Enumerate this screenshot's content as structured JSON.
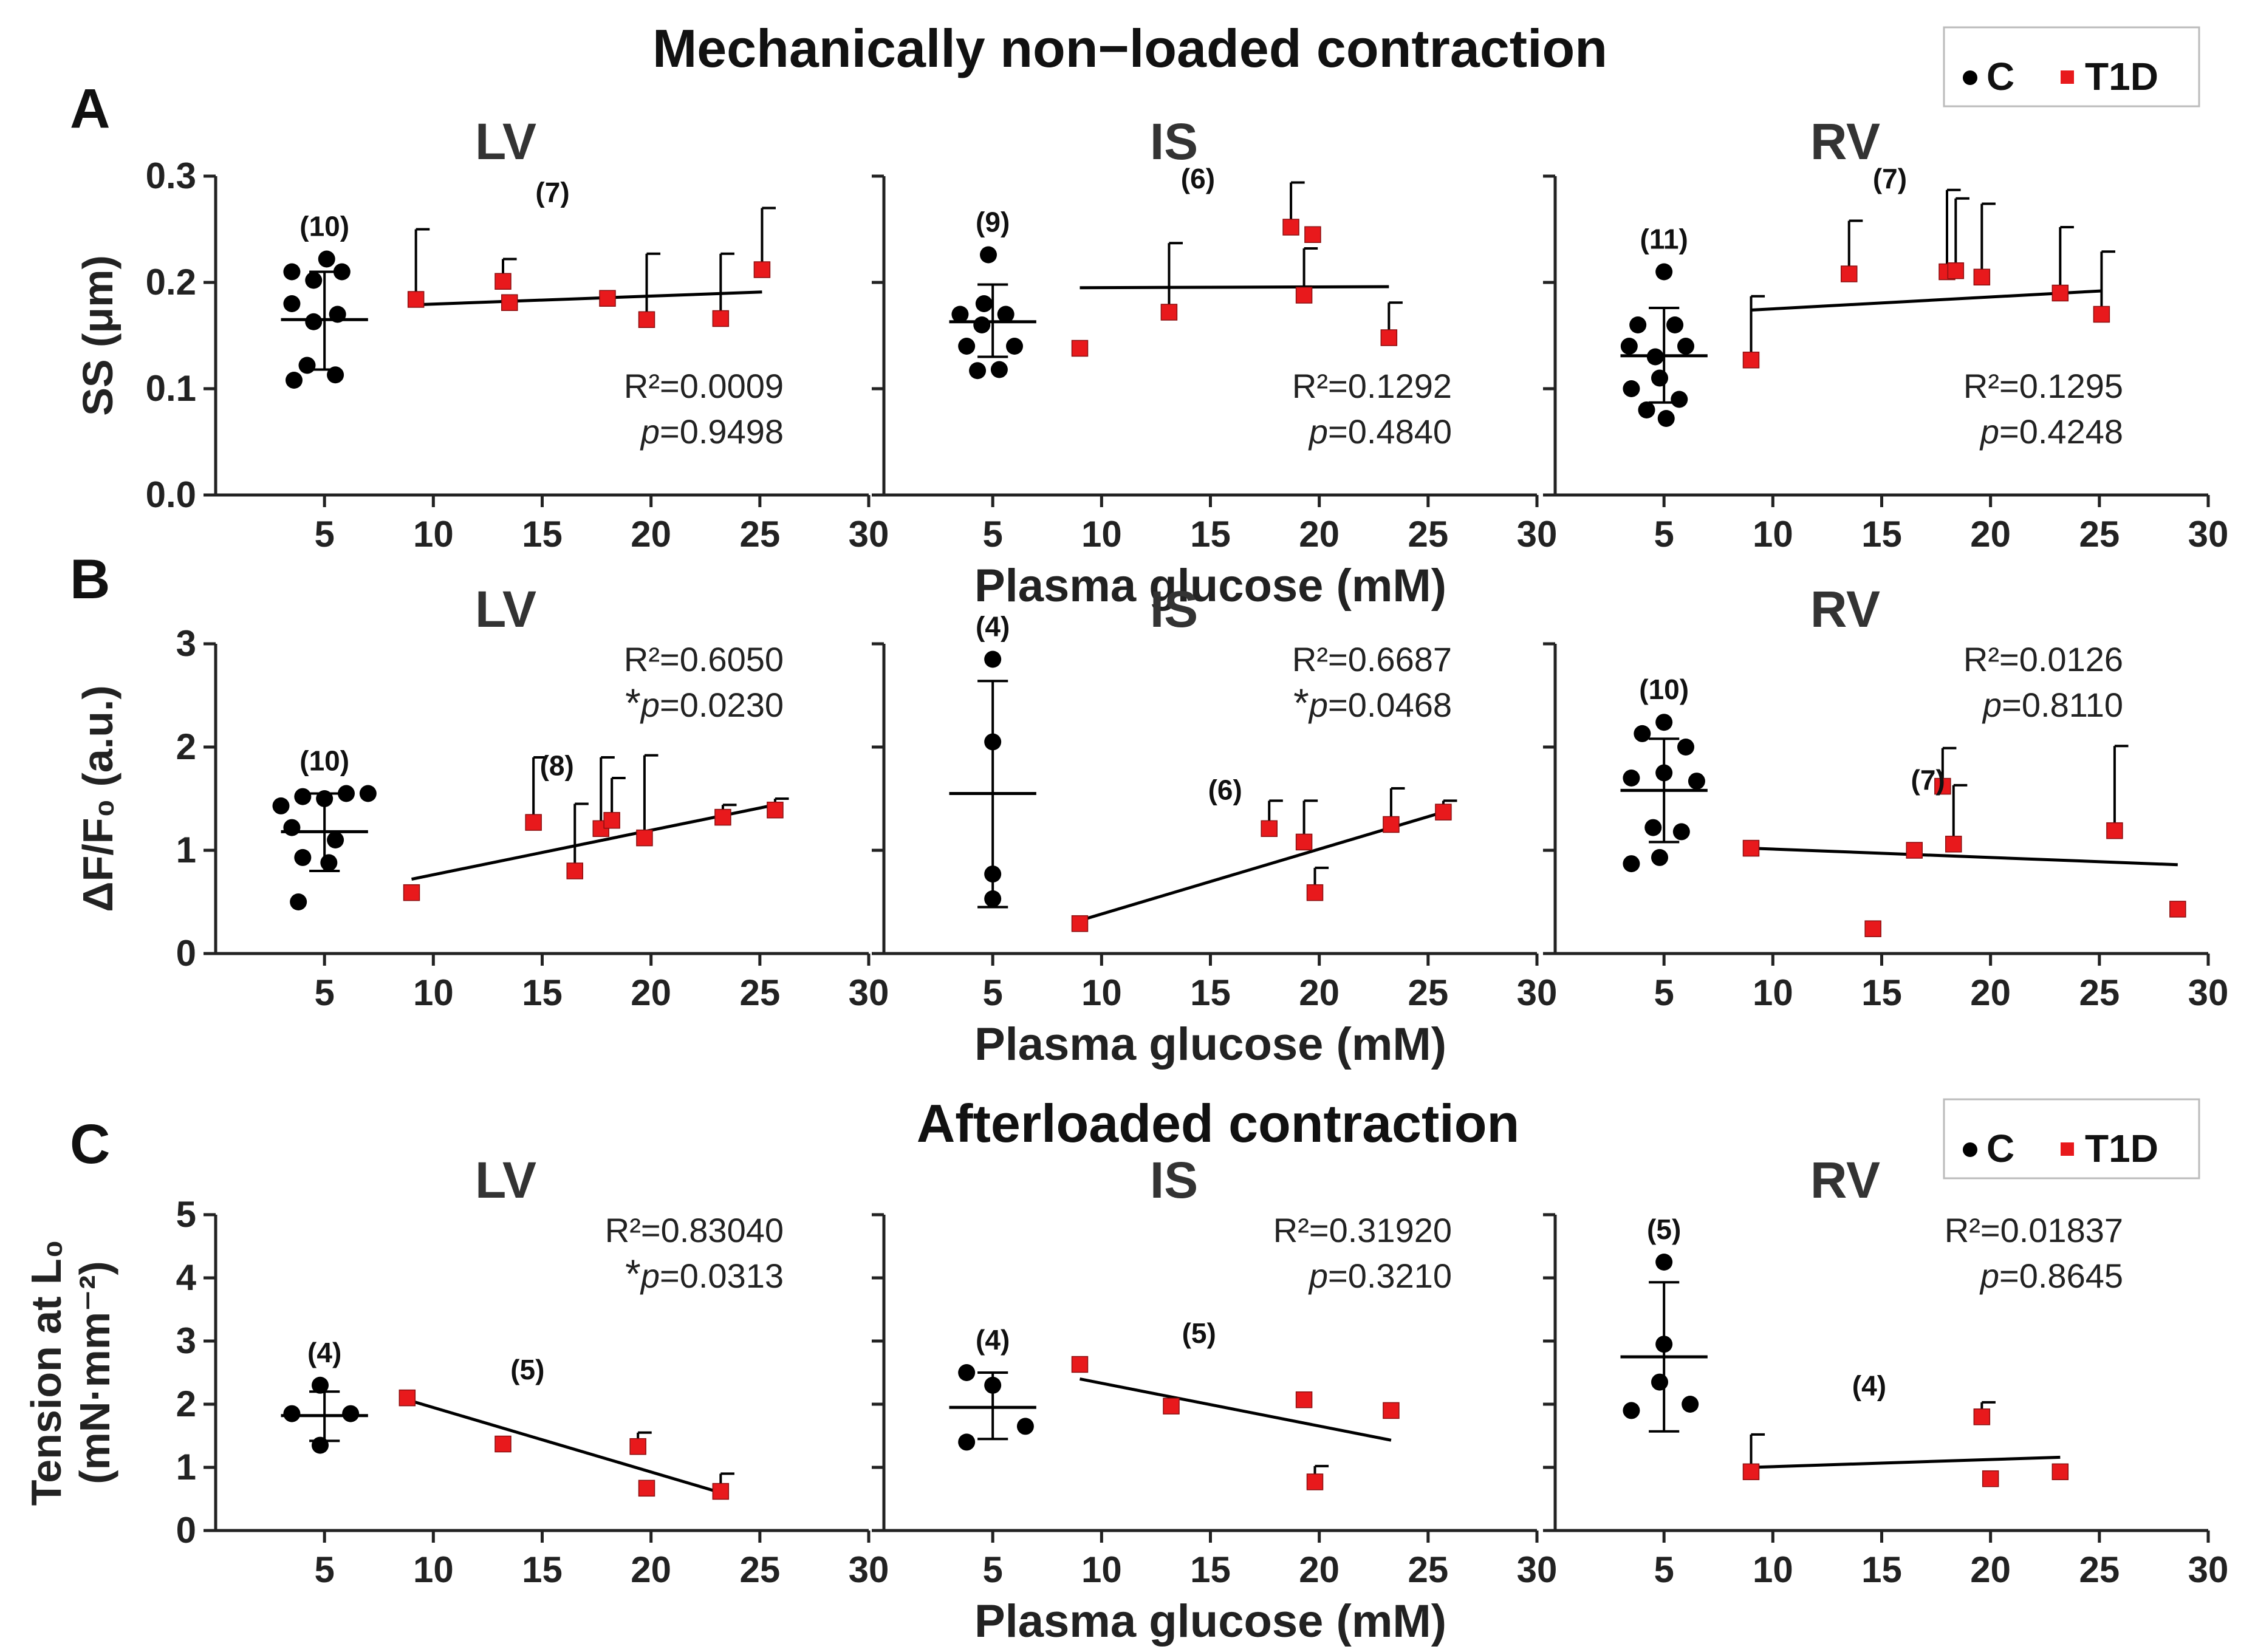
{
  "section_titles": {
    "non_loaded": "Mechanically non−loaded contraction",
    "afterloaded": "Afterloaded contraction"
  },
  "legend": {
    "c_label": "C",
    "t1d_label": "T1D"
  },
  "colors": {
    "control": "#000000",
    "t1d": "#e8191c",
    "axis": "#222222",
    "line": "#000000"
  },
  "icons": {
    "control_marker": "filled-circle",
    "t1d_marker": "filled-square",
    "significance": "asterisk"
  },
  "chart_data": [
    {
      "type": "scatter",
      "row": "A",
      "title": "LV",
      "ylabel": "SS (μm)",
      "xlabel": "",
      "xlim": [
        0,
        30
      ],
      "xticks": [
        5,
        10,
        15,
        20,
        25,
        30
      ],
      "xtick_labels": [
        "5",
        "10",
        "15",
        "20",
        "25",
        "30"
      ],
      "ylim": [
        0,
        0.3
      ],
      "yticks": [
        0,
        0.1,
        0.2,
        0.3
      ],
      "ytick_labels": [
        "0.0",
        "0.1",
        "0.2",
        "0.3"
      ],
      "control": {
        "x": [
          3.5,
          4.5,
          5.8,
          3.5,
          4.5,
          5.6,
          4.2,
          5.5,
          3.6,
          5.1
        ],
        "y": [
          0.21,
          0.202,
          0.21,
          0.18,
          0.163,
          0.17,
          0.122,
          0.113,
          0.108,
          0.222
        ],
        "mean": 0.165,
        "sd_low": 0.118,
        "sd_high": 0.21,
        "n_label": "(10)"
      },
      "t1d": {
        "x": [
          9.2,
          13.2,
          13.5,
          18.0,
          19.8,
          23.2,
          25.1
        ],
        "y": [
          0.184,
          0.201,
          0.181,
          0.185,
          0.165,
          0.166,
          0.212
        ],
        "err_high": [
          0.25,
          0.222,
          null,
          null,
          0.227,
          0.227,
          0.27
        ],
        "n_label": "(7)"
      },
      "fit": {
        "x": [
          9.2,
          25.1
        ],
        "y": [
          0.179,
          0.191
        ]
      },
      "stats": {
        "sig": "",
        "r2": "R²=0.0009",
        "p_prefix": "p",
        "p_value": "=0.9498"
      }
    },
    {
      "type": "scatter",
      "row": "A",
      "title": "IS",
      "ylabel": "",
      "xlabel": "Plasma glucose (mM)",
      "xlim": [
        0,
        30
      ],
      "xticks": [
        5,
        10,
        15,
        20,
        25,
        30
      ],
      "xtick_labels": [
        "5",
        "10",
        "15",
        "20",
        "25",
        "30"
      ],
      "ylim": [
        0,
        0.3
      ],
      "yticks": [
        0,
        0.1,
        0.2,
        0.3
      ],
      "ytick_labels": [
        "",
        "",
        "",
        ""
      ],
      "control": {
        "x": [
          4.8,
          3.5,
          4.5,
          5.6,
          3.8,
          6.0,
          4.3,
          5.3,
          4.6
        ],
        "y": [
          0.226,
          0.17,
          0.16,
          0.17,
          0.14,
          0.14,
          0.117,
          0.118,
          0.18
        ],
        "mean": 0.163,
        "sd_low": 0.13,
        "sd_high": 0.198,
        "n_label": "(9)"
      },
      "t1d": {
        "x": [
          9.0,
          13.1,
          18.7,
          19.3,
          19.7,
          23.2
        ],
        "y": [
          0.138,
          0.172,
          0.252,
          0.188,
          0.245,
          0.148
        ],
        "err_high": [
          null,
          0.237,
          0.294,
          0.232,
          null,
          0.181
        ],
        "n_label": "(6)"
      },
      "fit": {
        "x": [
          9.0,
          23.2
        ],
        "y": [
          0.195,
          0.196
        ]
      },
      "stats": {
        "sig": "",
        "r2": "R²=0.1292",
        "p_prefix": "p",
        "p_value": "=0.4840"
      }
    },
    {
      "type": "scatter",
      "row": "A",
      "title": "RV",
      "ylabel": "",
      "xlabel": "",
      "xlim": [
        0,
        30
      ],
      "xticks": [
        5,
        10,
        15,
        20,
        25,
        30
      ],
      "xtick_labels": [
        "5",
        "10",
        "15",
        "20",
        "25",
        "30"
      ],
      "ylim": [
        0,
        0.3
      ],
      "yticks": [
        0,
        0.1,
        0.2,
        0.3
      ],
      "ytick_labels": [
        "",
        "",
        "",
        ""
      ],
      "control": {
        "x": [
          5.0,
          3.8,
          5.5,
          3.4,
          4.6,
          6.0,
          3.5,
          4.8,
          5.7,
          4.2,
          5.1
        ],
        "y": [
          0.21,
          0.16,
          0.16,
          0.14,
          0.13,
          0.14,
          0.1,
          0.11,
          0.09,
          0.08,
          0.072
        ],
        "mean": 0.131,
        "sd_low": 0.087,
        "sd_high": 0.176,
        "n_label": "(11)"
      },
      "t1d": {
        "x": [
          9.0,
          13.5,
          18.0,
          18.4,
          19.6,
          23.2,
          25.1
        ],
        "y": [
          0.127,
          0.208,
          0.21,
          0.211,
          0.205,
          0.19,
          0.17
        ],
        "err_high": [
          0.187,
          0.258,
          0.287,
          0.279,
          0.274,
          0.252,
          0.229
        ],
        "n_label": "(7)"
      },
      "fit": {
        "x": [
          9.0,
          25.1
        ],
        "y": [
          0.174,
          0.192
        ]
      },
      "stats": {
        "sig": "",
        "r2": "R²=0.1295",
        "p_prefix": "p",
        "p_value": "=0.4248"
      }
    },
    {
      "type": "scatter",
      "row": "B",
      "title": "LV",
      "ylabel": "ΔF/F₀ (a.u.)",
      "xlabel": "",
      "xlim": [
        0,
        30
      ],
      "xticks": [
        5,
        10,
        15,
        20,
        25,
        30
      ],
      "xtick_labels": [
        "5",
        "10",
        "15",
        "20",
        "25",
        "30"
      ],
      "ylim": [
        0,
        3
      ],
      "yticks": [
        0,
        1,
        2,
        3
      ],
      "ytick_labels": [
        "0",
        "1",
        "2",
        "3"
      ],
      "control": {
        "x": [
          3.0,
          4.0,
          5.0,
          6.0,
          7.0,
          3.5,
          5.5,
          4.0,
          5.2,
          3.8
        ],
        "y": [
          1.43,
          1.52,
          1.5,
          1.55,
          1.55,
          1.22,
          1.1,
          0.93,
          0.88,
          0.5
        ],
        "mean": 1.18,
        "sd_low": 0.8,
        "sd_high": 1.55,
        "n_label": "(10)"
      },
      "t1d": {
        "x": [
          9.0,
          14.6,
          16.5,
          17.7,
          18.2,
          19.7,
          23.3,
          25.7
        ],
        "y": [
          0.59,
          1.27,
          0.8,
          1.21,
          1.29,
          1.12,
          1.32,
          1.39
        ],
        "err_high": [
          null,
          1.9,
          1.45,
          1.9,
          1.7,
          1.92,
          1.44,
          1.5
        ],
        "n_label": "(8)"
      },
      "fit": {
        "x": [
          9.0,
          25.7
        ],
        "y": [
          0.72,
          1.44
        ]
      },
      "stats": {
        "sig": "*",
        "r2": "R²=0.6050",
        "p_prefix": "p",
        "p_value": "=0.0230"
      }
    },
    {
      "type": "scatter",
      "row": "B",
      "title": "IS",
      "ylabel": "",
      "xlabel": "Plasma glucose (mM)",
      "xlim": [
        0,
        30
      ],
      "xticks": [
        5,
        10,
        15,
        20,
        25,
        30
      ],
      "xtick_labels": [
        "5",
        "10",
        "15",
        "20",
        "25",
        "30"
      ],
      "ylim": [
        0,
        3
      ],
      "yticks": [
        0,
        1,
        2,
        3
      ],
      "ytick_labels": [
        "",
        "",
        "",
        ""
      ],
      "control": {
        "x": [
          5.0,
          5.0,
          5.0,
          5.0
        ],
        "y": [
          2.85,
          2.05,
          0.77,
          0.53
        ],
        "mean": 1.55,
        "sd_low": 0.45,
        "sd_high": 2.64,
        "n_label": "(4)"
      },
      "t1d": {
        "x": [
          9.0,
          17.7,
          19.3,
          19.8,
          23.3,
          25.7
        ],
        "y": [
          0.29,
          1.21,
          1.08,
          0.59,
          1.25,
          1.37
        ],
        "err_high": [
          null,
          1.48,
          1.48,
          0.83,
          1.6,
          1.48
        ],
        "n_label": "(6)"
      },
      "fit": {
        "x": [
          9.0,
          25.7
        ],
        "y": [
          0.32,
          1.37
        ]
      },
      "stats": {
        "sig": "*",
        "r2": "R²=0.6687",
        "p_prefix": "p",
        "p_value": "=0.0468"
      }
    },
    {
      "type": "scatter",
      "row": "B",
      "title": "RV",
      "ylabel": "",
      "xlabel": "",
      "xlim": [
        0,
        30
      ],
      "xticks": [
        5,
        10,
        15,
        20,
        25,
        30
      ],
      "xtick_labels": [
        "5",
        "10",
        "15",
        "20",
        "25",
        "30"
      ],
      "ylim": [
        0,
        3
      ],
      "yticks": [
        0,
        1,
        2,
        3
      ],
      "ytick_labels": [
        "",
        "",
        "",
        ""
      ],
      "control": {
        "x": [
          5.0,
          4.0,
          6.0,
          3.5,
          5.0,
          6.5,
          4.5,
          5.8,
          3.5,
          4.8
        ],
        "y": [
          2.24,
          2.13,
          2.0,
          1.7,
          1.75,
          1.67,
          1.22,
          1.18,
          0.87,
          0.93
        ],
        "mean": 1.58,
        "sd_low": 1.08,
        "sd_high": 2.08,
        "n_label": "(10)"
      },
      "t1d": {
        "x": [
          9.0,
          14.6,
          16.5,
          17.8,
          18.3,
          25.7,
          28.6
        ],
        "y": [
          1.02,
          0.24,
          1.0,
          1.62,
          1.06,
          1.19,
          0.43
        ],
        "err_high": [
          null,
          null,
          null,
          1.99,
          1.63,
          2.01,
          null
        ],
        "n_label": "(7)"
      },
      "fit": {
        "x": [
          9.0,
          28.6
        ],
        "y": [
          1.02,
          0.86
        ]
      },
      "stats": {
        "sig": "",
        "r2": "R²=0.0126",
        "p_prefix": "p",
        "p_value": "=0.8110"
      }
    },
    {
      "type": "scatter",
      "row": "C",
      "title": "LV",
      "ylabel": "Tension at L₀ (mN·mm⁻²)",
      "xlabel": "",
      "xlim": [
        0,
        30
      ],
      "xticks": [
        5,
        10,
        15,
        20,
        25,
        30
      ],
      "xtick_labels": [
        "5",
        "10",
        "15",
        "20",
        "25",
        "30"
      ],
      "ylim": [
        0,
        5
      ],
      "yticks": [
        0,
        1,
        2,
        3,
        4,
        5
      ],
      "ytick_labels": [
        "0",
        "1",
        "2",
        "3",
        "4",
        "5"
      ],
      "control": {
        "x": [
          4.8,
          3.5,
          6.2,
          4.8
        ],
        "y": [
          2.3,
          1.85,
          1.85,
          1.35
        ],
        "mean": 1.82,
        "sd_low": 1.42,
        "sd_high": 2.2,
        "n_label": "(4)"
      },
      "t1d": {
        "x": [
          8.8,
          13.2,
          19.4,
          19.8,
          23.2
        ],
        "y": [
          2.1,
          1.37,
          1.33,
          0.67,
          0.62
        ],
        "err_high": [
          null,
          null,
          1.55,
          null,
          0.9
        ],
        "n_label": "(5)"
      },
      "fit": {
        "x": [
          8.8,
          23.2
        ],
        "y": [
          2.07,
          0.6
        ]
      },
      "stats": {
        "sig": "*",
        "r2": "R²=0.83040",
        "p_prefix": "p",
        "p_value": "=0.0313"
      }
    },
    {
      "type": "scatter",
      "row": "C",
      "title": "IS",
      "ylabel": "",
      "xlabel": "Plasma glucose (mM)",
      "xlim": [
        0,
        30
      ],
      "xticks": [
        5,
        10,
        15,
        20,
        25,
        30
      ],
      "xtick_labels": [
        "5",
        "10",
        "15",
        "20",
        "25",
        "30"
      ],
      "ylim": [
        0,
        5
      ],
      "yticks": [
        0,
        1,
        2,
        3,
        4,
        5
      ],
      "ytick_labels": [
        "",
        "",
        "",
        "",
        "",
        ""
      ],
      "control": {
        "x": [
          3.8,
          5.0,
          6.5,
          3.8
        ],
        "y": [
          2.5,
          2.3,
          1.65,
          1.4
        ],
        "mean": 1.95,
        "sd_low": 1.45,
        "sd_high": 2.5,
        "n_label": "(4)"
      },
      "t1d": {
        "x": [
          9.0,
          13.2,
          19.3,
          19.8,
          23.3
        ],
        "y": [
          2.63,
          1.97,
          2.07,
          0.77,
          1.9
        ],
        "err_high": [
          null,
          null,
          null,
          1.02,
          null
        ],
        "n_label": "(5)"
      },
      "fit": {
        "x": [
          9.0,
          23.3
        ],
        "y": [
          2.4,
          1.43
        ]
      },
      "stats": {
        "sig": "",
        "r2": "R²=0.31920",
        "p_prefix": "p",
        "p_value": "=0.3210"
      }
    },
    {
      "type": "scatter",
      "row": "C",
      "title": "RV",
      "ylabel": "",
      "xlabel": "",
      "xlim": [
        0,
        30
      ],
      "xticks": [
        5,
        10,
        15,
        20,
        25,
        30
      ],
      "xtick_labels": [
        "5",
        "10",
        "15",
        "20",
        "25",
        "30"
      ],
      "ylim": [
        0,
        5
      ],
      "yticks": [
        0,
        1,
        2,
        3,
        4,
        5
      ],
      "ytick_labels": [
        "",
        "",
        "",
        "",
        "",
        ""
      ],
      "control": {
        "x": [
          5.0,
          5.0,
          3.5,
          6.2,
          4.8
        ],
        "y": [
          4.25,
          2.95,
          1.9,
          2.0,
          2.35
        ],
        "mean": 2.75,
        "sd_low": 1.57,
        "sd_high": 3.93,
        "n_label": "(5)"
      },
      "t1d": {
        "x": [
          9.0,
          19.6,
          20.0,
          23.2
        ],
        "y": [
          0.93,
          1.8,
          0.82,
          0.93
        ],
        "err_high": [
          1.52,
          2.03,
          null,
          null
        ],
        "n_label": "(4)"
      },
      "fit": {
        "x": [
          9.0,
          23.2
        ],
        "y": [
          1.0,
          1.16
        ]
      },
      "stats": {
        "sig": "",
        "r2": "R²=0.01837",
        "p_prefix": "p",
        "p_value": "=0.8645"
      }
    }
  ]
}
